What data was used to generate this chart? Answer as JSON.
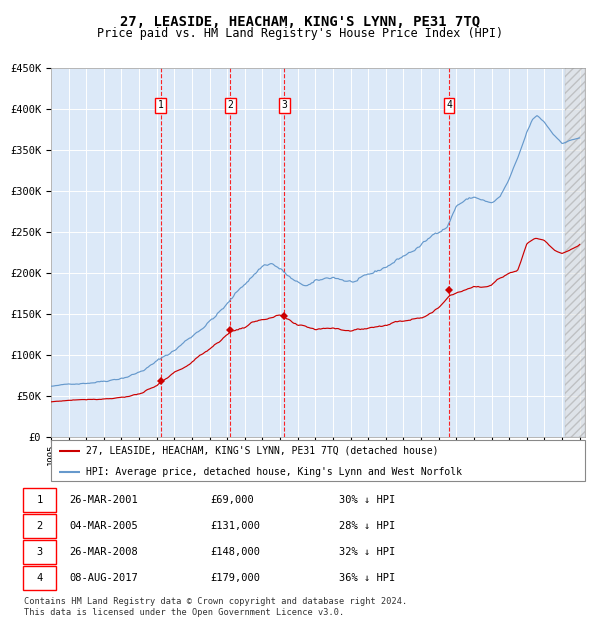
{
  "title": "27, LEASIDE, HEACHAM, KING'S LYNN, PE31 7TQ",
  "subtitle": "Price paid vs. HM Land Registry's House Price Index (HPI)",
  "ylim": [
    0,
    450000
  ],
  "yticks": [
    0,
    50000,
    100000,
    150000,
    200000,
    250000,
    300000,
    350000,
    400000,
    450000
  ],
  "ytick_labels": [
    "£0",
    "£50K",
    "£100K",
    "£150K",
    "£200K",
    "£250K",
    "£300K",
    "£350K",
    "£400K",
    "£450K"
  ],
  "xlim_start": 1995.0,
  "xlim_end": 2025.3,
  "plot_bg_color": "#dce9f8",
  "grid_color": "#ffffff",
  "sale_dates": [
    2001.23,
    2005.17,
    2008.23,
    2017.59
  ],
  "sale_prices": [
    69000,
    131000,
    148000,
    179000
  ],
  "sale_labels": [
    "1",
    "2",
    "3",
    "4"
  ],
  "red_line_color": "#cc0000",
  "blue_line_color": "#6699cc",
  "legend_red_label": "27, LEASIDE, HEACHAM, KING'S LYNN, PE31 7TQ (detached house)",
  "legend_blue_label": "HPI: Average price, detached house, King's Lynn and West Norfolk",
  "table_rows": [
    [
      "1",
      "26-MAR-2001",
      "£69,000",
      "30% ↓ HPI"
    ],
    [
      "2",
      "04-MAR-2005",
      "£131,000",
      "28% ↓ HPI"
    ],
    [
      "3",
      "26-MAR-2008",
      "£148,000",
      "32% ↓ HPI"
    ],
    [
      "4",
      "08-AUG-2017",
      "£179,000",
      "36% ↓ HPI"
    ]
  ],
  "footnote": "Contains HM Land Registry data © Crown copyright and database right 2024.\nThis data is licensed under the Open Government Licence v3.0.",
  "title_fontsize": 10,
  "subtitle_fontsize": 8.5,
  "tick_fontsize": 7.5,
  "hpi_waypoints_x": [
    1995.0,
    1996.0,
    1997.0,
    1998.0,
    1999.0,
    2000.0,
    2001.0,
    2002.0,
    2003.0,
    2004.0,
    2005.0,
    2006.0,
    2007.0,
    2007.5,
    2008.0,
    2008.5,
    2009.0,
    2009.5,
    2010.0,
    2010.5,
    2011.0,
    2011.5,
    2012.0,
    2012.5,
    2013.0,
    2013.5,
    2014.0,
    2014.5,
    2015.0,
    2015.5,
    2016.0,
    2016.5,
    2017.0,
    2017.5,
    2018.0,
    2018.5,
    2019.0,
    2019.5,
    2020.0,
    2020.5,
    2021.0,
    2021.5,
    2022.0,
    2022.3,
    2022.6,
    2023.0,
    2023.5,
    2024.0,
    2024.5,
    2025.0
  ],
  "hpi_waypoints_y": [
    62000,
    64000,
    67000,
    71000,
    77000,
    85000,
    98000,
    112000,
    130000,
    150000,
    170000,
    195000,
    218000,
    222000,
    215000,
    205000,
    195000,
    192000,
    195000,
    197000,
    200000,
    198000,
    195000,
    196000,
    198000,
    202000,
    208000,
    215000,
    222000,
    228000,
    235000,
    243000,
    252000,
    260000,
    285000,
    292000,
    295000,
    292000,
    287000,
    295000,
    315000,
    340000,
    370000,
    385000,
    390000,
    382000,
    368000,
    358000,
    362000,
    365000
  ],
  "red_waypoints_x": [
    1995.0,
    1996.0,
    1997.0,
    1998.0,
    1999.0,
    2000.0,
    2001.0,
    2001.23,
    2002.0,
    2003.0,
    2004.0,
    2005.0,
    2005.17,
    2006.0,
    2007.0,
    2008.0,
    2008.23,
    2009.0,
    2010.0,
    2011.0,
    2012.0,
    2013.0,
    2014.0,
    2015.0,
    2016.0,
    2017.0,
    2017.59,
    2018.0,
    2018.5,
    2019.0,
    2019.5,
    2020.0,
    2020.5,
    2021.0,
    2021.5,
    2022.0,
    2022.5,
    2023.0,
    2023.3,
    2023.6,
    2024.0,
    2024.5,
    2025.0
  ],
  "red_waypoints_y": [
    43000,
    45000,
    47000,
    49000,
    52000,
    57000,
    65000,
    69000,
    80000,
    93000,
    110000,
    128000,
    131000,
    138000,
    148000,
    151000,
    148000,
    135000,
    130000,
    133000,
    132000,
    135000,
    140000,
    145000,
    152000,
    163000,
    179000,
    183000,
    188000,
    192000,
    190000,
    192000,
    200000,
    205000,
    210000,
    242000,
    248000,
    245000,
    238000,
    232000,
    228000,
    232000,
    235000
  ]
}
